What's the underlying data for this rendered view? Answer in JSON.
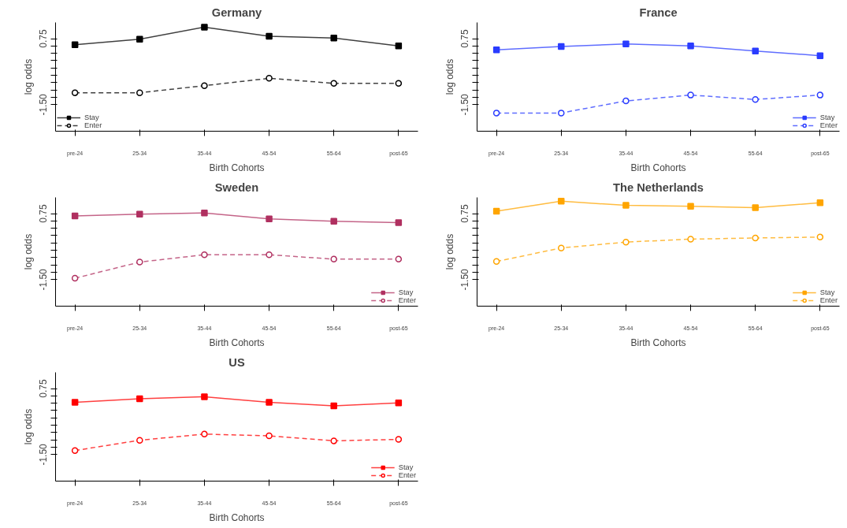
{
  "chart_data": [
    {
      "type": "line",
      "title": "Germany",
      "xlabel": "Birth Cohorts",
      "ylabel": "log odds",
      "categories": [
        "pre-24",
        "25-34",
        "35-44",
        "45-54",
        "55-64",
        "post-65"
      ],
      "ylim": [
        -2.4,
        1.3
      ],
      "yticks": [
        {
          "value": -1.5,
          "label": "-1.50"
        },
        {
          "value": -1.25,
          "label": null
        },
        {
          "value": -1.0,
          "label": null
        },
        {
          "value": -0.75,
          "label": null
        },
        {
          "value": -0.5,
          "label": null
        },
        {
          "value": -0.25,
          "label": null
        },
        {
          "value": 0,
          "label": null
        },
        {
          "value": 0.25,
          "label": null
        },
        {
          "value": 0.5,
          "label": null
        },
        {
          "value": 0.75,
          "label": "0.75"
        }
      ],
      "grid": false,
      "legend": "bottom left",
      "series": [
        {
          "name": "Stay",
          "color": "#000000",
          "marker": "square",
          "line_style": "solid",
          "values": [
            0.54,
            0.73,
            1.14,
            0.83,
            0.77,
            0.5
          ]
        },
        {
          "name": "Enter",
          "color": "#000000",
          "marker": "circle",
          "line_style": "dashed",
          "values": [
            -1.09,
            -1.09,
            -0.85,
            -0.6,
            -0.77,
            -0.77
          ]
        }
      ]
    },
    {
      "type": "line",
      "title": "France",
      "xlabel": "Birth Cohorts",
      "ylabel": "log odds",
      "categories": [
        "pre-24",
        "25-34",
        "35-44",
        "45-54",
        "55-64",
        "post-65"
      ],
      "ylim": [
        -2.4,
        1.3
      ],
      "yticks": [
        {
          "value": -1.5,
          "label": "-1.50"
        },
        {
          "value": -1.25,
          "label": null
        },
        {
          "value": -1.0,
          "label": null
        },
        {
          "value": -0.75,
          "label": null
        },
        {
          "value": -0.5,
          "label": null
        },
        {
          "value": -0.25,
          "label": null
        },
        {
          "value": 0,
          "label": null
        },
        {
          "value": 0.25,
          "label": null
        },
        {
          "value": 0.5,
          "label": null
        },
        {
          "value": 0.75,
          "label": "0.75"
        }
      ],
      "grid": false,
      "legend": "bottom right",
      "series": [
        {
          "name": "Stay",
          "color": "#2a3cff",
          "marker": "square",
          "line_style": "solid",
          "values": [
            0.37,
            0.48,
            0.57,
            0.5,
            0.33,
            0.17
          ]
        },
        {
          "name": "Enter",
          "color": "#2a3cff",
          "marker": "circle",
          "line_style": "dashed",
          "values": [
            -1.78,
            -1.78,
            -1.37,
            -1.17,
            -1.32,
            -1.17
          ]
        }
      ]
    },
    {
      "type": "line",
      "title": "Sweden",
      "xlabel": "Birth Cohorts",
      "ylabel": "log odds",
      "categories": [
        "pre-24",
        "25-34",
        "35-44",
        "45-54",
        "55-64",
        "post-65"
      ],
      "ylim": [
        -2.4,
        1.3
      ],
      "yticks": [
        {
          "value": -1.5,
          "label": "-1.50"
        },
        {
          "value": -1.25,
          "label": null
        },
        {
          "value": -1.0,
          "label": null
        },
        {
          "value": -0.75,
          "label": null
        },
        {
          "value": -0.5,
          "label": null
        },
        {
          "value": -0.25,
          "label": null
        },
        {
          "value": 0,
          "label": null
        },
        {
          "value": 0.25,
          "label": null
        },
        {
          "value": 0.5,
          "label": null
        },
        {
          "value": 0.75,
          "label": "0.75"
        }
      ],
      "grid": false,
      "legend": "bottom right",
      "series": [
        {
          "name": "Stay",
          "color": "#b03060",
          "marker": "square",
          "line_style": "solid",
          "values": [
            0.67,
            0.73,
            0.77,
            0.57,
            0.49,
            0.44
          ]
        },
        {
          "name": "Enter",
          "color": "#b03060",
          "marker": "circle",
          "line_style": "dashed",
          "values": [
            -1.45,
            -0.9,
            -0.65,
            -0.65,
            -0.8,
            -0.8
          ]
        }
      ]
    },
    {
      "type": "line",
      "title": "The Netherlands",
      "xlabel": "Birth Cohorts",
      "ylabel": "log odds",
      "categories": [
        "pre-24",
        "25-34",
        "35-44",
        "45-54",
        "55-64",
        "post-65"
      ],
      "ylim": [
        -2.4,
        1.3
      ],
      "yticks": [
        {
          "value": -1.5,
          "label": "-1.50"
        },
        {
          "value": -1.25,
          "label": null
        },
        {
          "value": -1.0,
          "label": null
        },
        {
          "value": -0.75,
          "label": null
        },
        {
          "value": -0.5,
          "label": null
        },
        {
          "value": -0.25,
          "label": null
        },
        {
          "value": 0,
          "label": null
        },
        {
          "value": 0.25,
          "label": null
        },
        {
          "value": 0.5,
          "label": null
        },
        {
          "value": 0.75,
          "label": "0.75"
        }
      ],
      "grid": false,
      "legend": "bottom right",
      "series": [
        {
          "name": "Stay",
          "color": "#ffa500",
          "marker": "square",
          "line_style": "solid",
          "values": [
            0.83,
            1.17,
            1.03,
            1.0,
            0.95,
            1.12
          ]
        },
        {
          "name": "Enter",
          "color": "#ffa500",
          "marker": "circle",
          "line_style": "dashed",
          "values": [
            -0.88,
            -0.42,
            -0.22,
            -0.12,
            -0.08,
            -0.05
          ]
        }
      ]
    },
    {
      "type": "line",
      "title": "US",
      "xlabel": "Birth Cohorts",
      "ylabel": "log odds",
      "categories": [
        "pre-24",
        "25-34",
        "35-44",
        "45-54",
        "55-64",
        "post-65"
      ],
      "ylim": [
        -2.4,
        1.3
      ],
      "yticks": [
        {
          "value": -1.5,
          "label": "-1.50"
        },
        {
          "value": -1.25,
          "label": null
        },
        {
          "value": -1.0,
          "label": null
        },
        {
          "value": -0.75,
          "label": null
        },
        {
          "value": -0.5,
          "label": null
        },
        {
          "value": -0.25,
          "label": null
        },
        {
          "value": 0,
          "label": null
        },
        {
          "value": 0.25,
          "label": null
        },
        {
          "value": 0.5,
          "label": null
        },
        {
          "value": 0.75,
          "label": "0.75"
        }
      ],
      "grid": false,
      "legend": "bottom right",
      "series": [
        {
          "name": "Stay",
          "color": "#ff0000",
          "marker": "square",
          "line_style": "solid",
          "values": [
            0.28,
            0.4,
            0.47,
            0.28,
            0.16,
            0.26
          ]
        },
        {
          "name": "Enter",
          "color": "#ff0000",
          "marker": "circle",
          "line_style": "dashed",
          "values": [
            -1.36,
            -1.01,
            -0.8,
            -0.86,
            -1.03,
            -0.98
          ]
        }
      ]
    }
  ]
}
